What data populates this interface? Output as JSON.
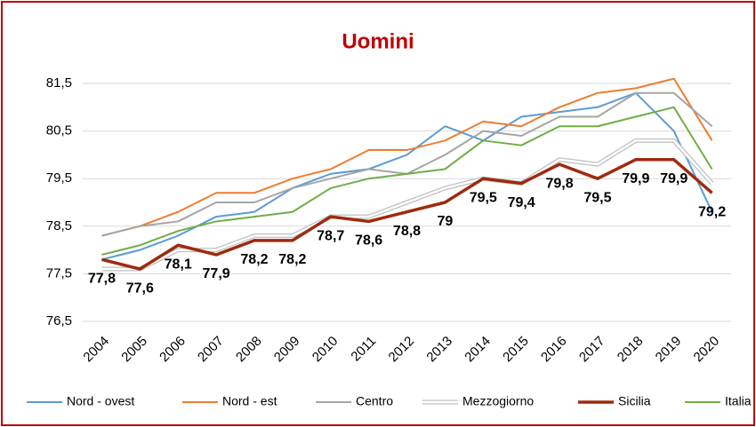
{
  "chart_data": {
    "type": "line",
    "title": "Uomini",
    "categories": [
      "2004",
      "2005",
      "2006",
      "2007",
      "2008",
      "2009",
      "2010",
      "2011",
      "2012",
      "2013",
      "2014",
      "2015",
      "2016",
      "2017",
      "2018",
      "2019",
      "2020"
    ],
    "series": [
      {
        "name": "Nord - ovest",
        "color": "#5b9bd5",
        "values": [
          77.8,
          78.0,
          78.3,
          78.7,
          78.8,
          79.3,
          79.6,
          79.7,
          80.0,
          80.6,
          80.3,
          80.8,
          80.9,
          81.0,
          81.3,
          80.5,
          78.8
        ]
      },
      {
        "name": "Nord - est",
        "color": "#ed7d31",
        "values": [
          78.3,
          78.5,
          78.8,
          79.2,
          79.2,
          79.5,
          79.7,
          80.1,
          80.1,
          80.3,
          80.7,
          80.6,
          81.0,
          81.3,
          81.4,
          81.6,
          80.3
        ]
      },
      {
        "name": "Centro",
        "color": "#a5a5a5",
        "values": [
          78.3,
          78.5,
          78.6,
          79.0,
          79.0,
          79.3,
          79.5,
          79.7,
          79.6,
          80.0,
          80.5,
          80.4,
          80.8,
          80.8,
          81.3,
          81.3,
          80.6
        ]
      },
      {
        "name": "Mezzogiorno",
        "color": "#bfbfbf",
        "values": [
          77.6,
          77.6,
          78.0,
          78.0,
          78.3,
          78.3,
          78.7,
          78.7,
          79.0,
          79.3,
          79.5,
          79.4,
          79.9,
          79.8,
          80.3,
          80.3,
          79.4
        ]
      },
      {
        "name": "Sicilia",
        "color": "#9e2a0e",
        "values": [
          77.8,
          77.6,
          78.1,
          77.9,
          78.2,
          78.2,
          78.7,
          78.6,
          78.8,
          79,
          79.5,
          79.4,
          79.8,
          79.5,
          79.9,
          79.9,
          79.2
        ],
        "value_labels": [
          "77,8",
          "77,6",
          "78,1",
          "77,9",
          "78,2",
          "78,2",
          "78,7",
          "78,6",
          "78,8",
          "79",
          "79,5",
          "79,4",
          "79,8",
          "79,5",
          "79,9",
          "79,9",
          "79,2"
        ]
      },
      {
        "name": "Italia",
        "color": "#70ad47",
        "values": [
          77.9,
          78.1,
          78.4,
          78.6,
          78.7,
          78.8,
          79.3,
          79.5,
          79.6,
          79.7,
          80.3,
          80.2,
          80.6,
          80.6,
          80.8,
          81.0,
          79.7
        ]
      }
    ],
    "ylim": [
      76.5,
      81.7
    ],
    "yticks": [
      {
        "value": 76.5,
        "label": "76,5"
      },
      {
        "value": 77.5,
        "label": "77,5"
      },
      {
        "value": 78.5,
        "label": "78,5"
      },
      {
        "value": 79.5,
        "label": "79,5"
      },
      {
        "value": 80.5,
        "label": "80,5"
      },
      {
        "value": 81.5,
        "label": "81,5"
      }
    ],
    "grid": true,
    "legend": "bottom"
  }
}
